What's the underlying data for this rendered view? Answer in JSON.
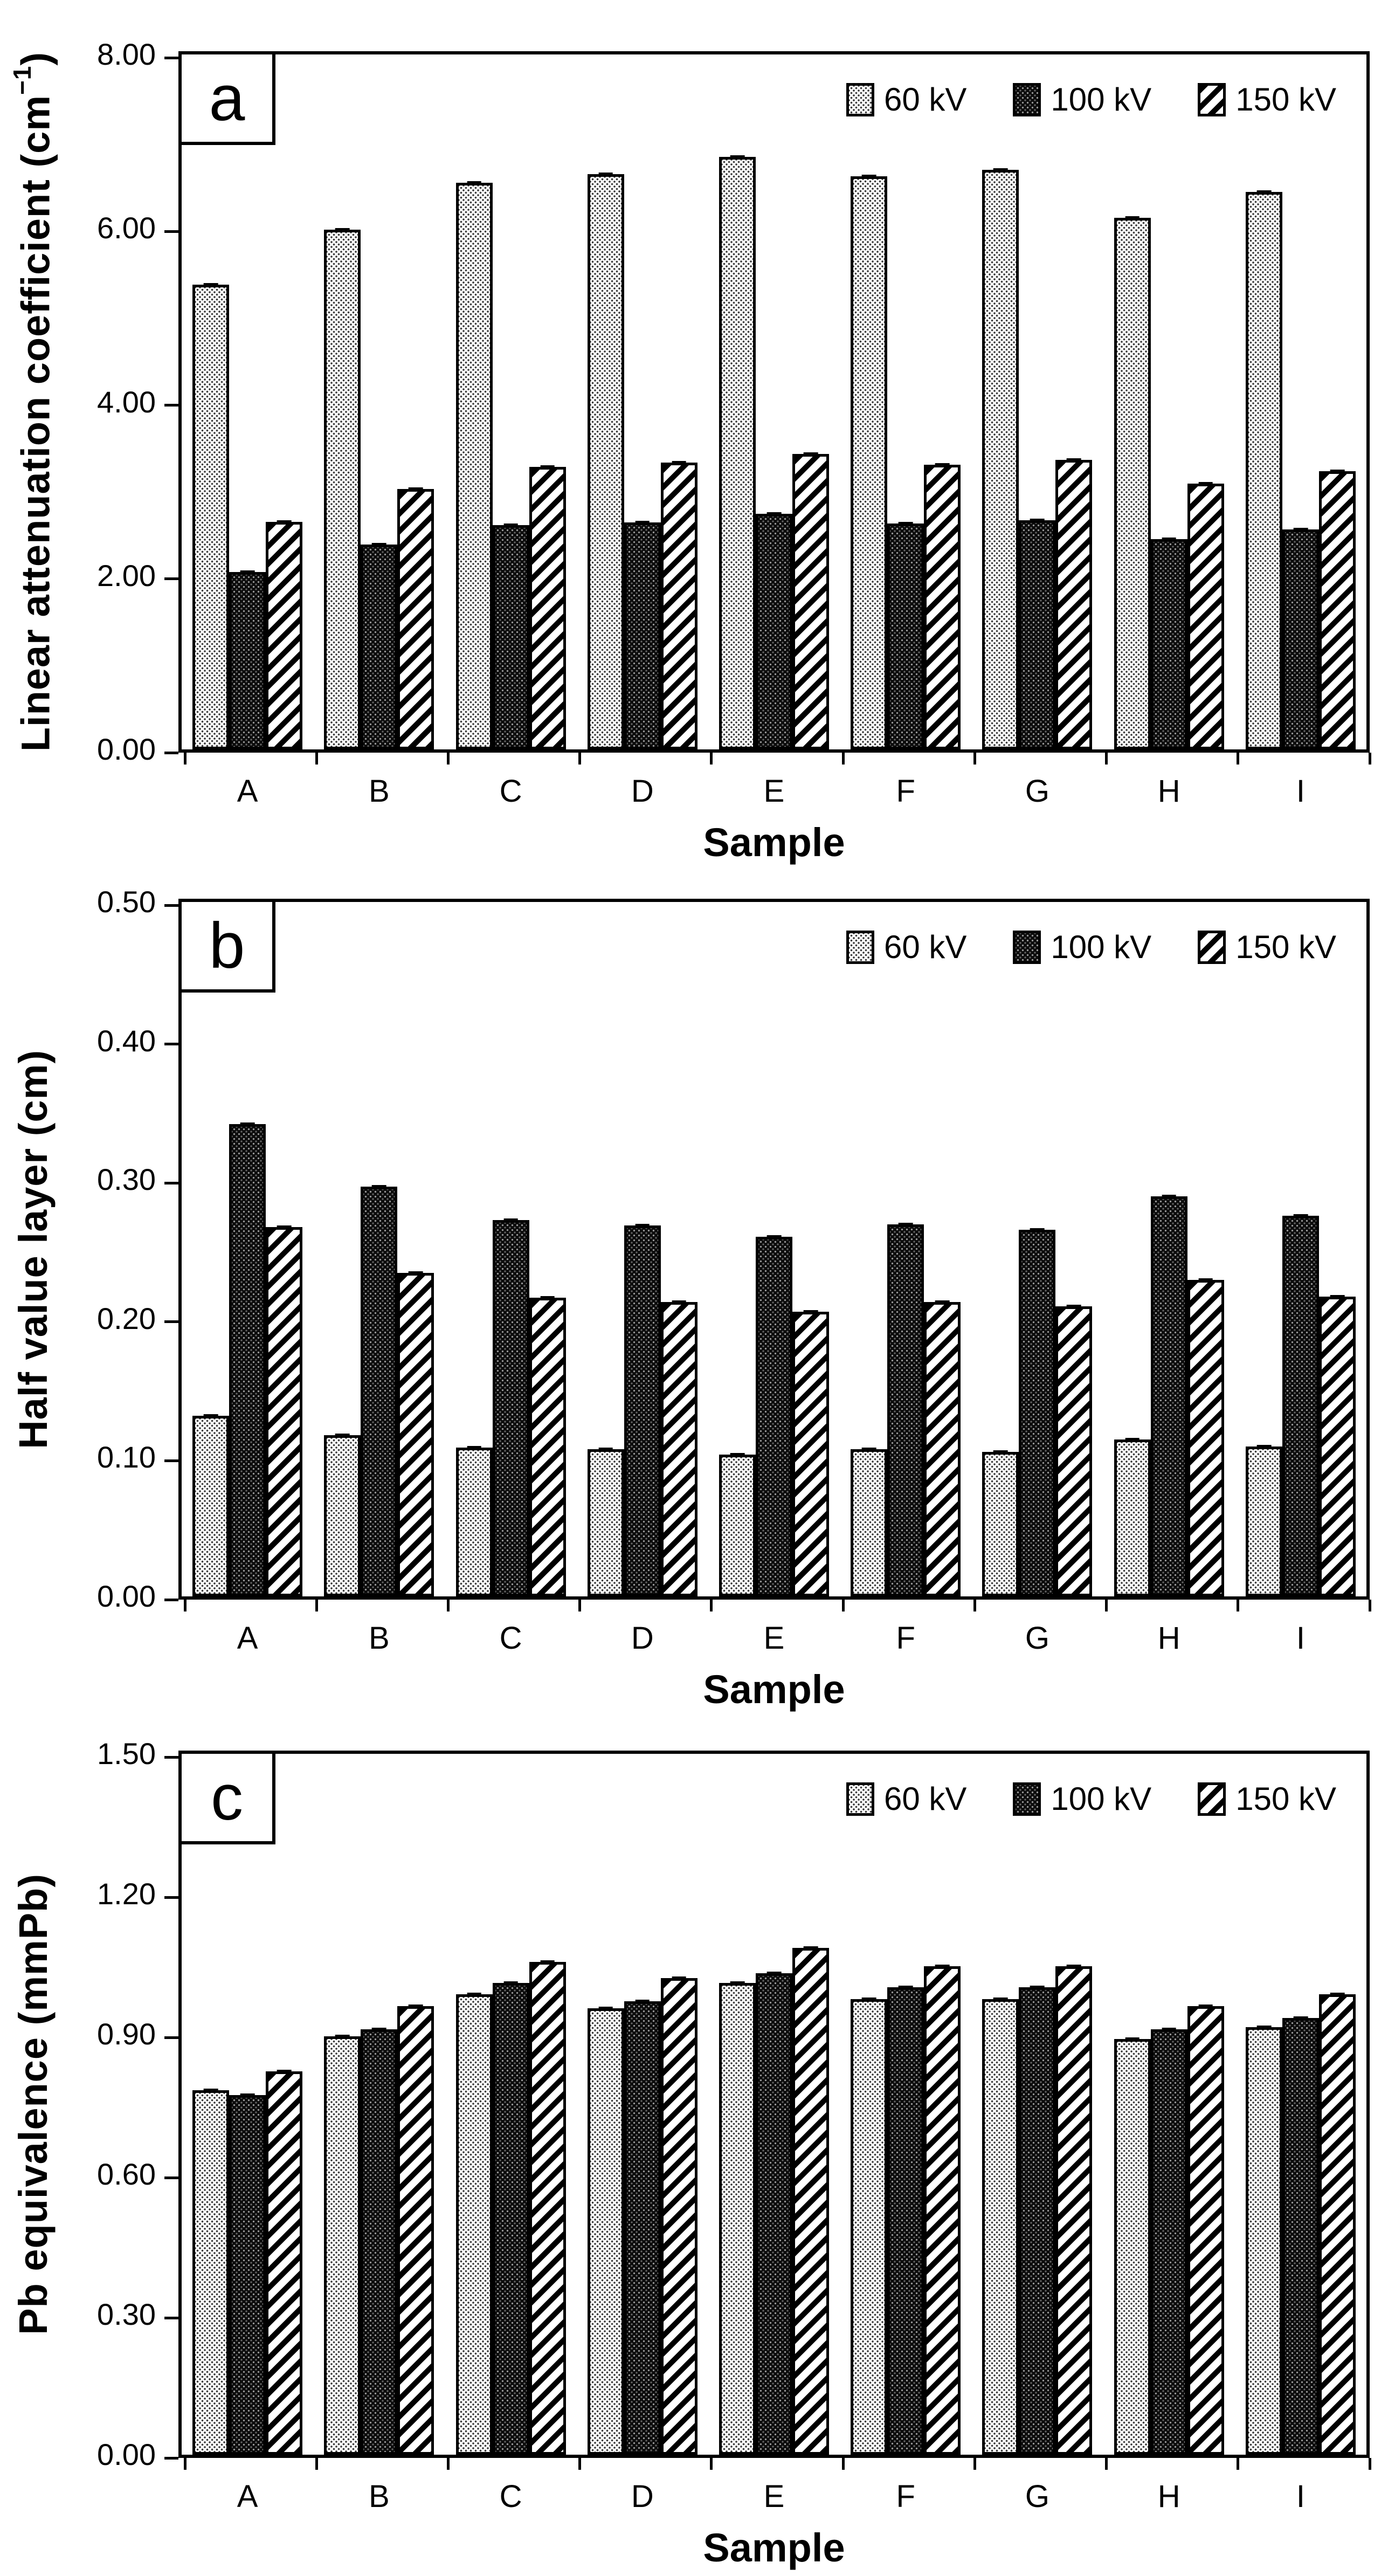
{
  "figure": {
    "background": "#ffffff",
    "ink_color": "#000000",
    "legend_labels": [
      "60 kV",
      "100 kV",
      "150 kV"
    ],
    "series_patterns": [
      "light-dot-grid",
      "dark-dot-grid",
      "diagonal-hatch"
    ]
  },
  "chart_data": [
    {
      "type": "bar",
      "panel_label": "a",
      "title": "",
      "ylabel": "Linear attenuation coefficient (cm⁻¹)",
      "xlabel": "Sample",
      "categories": [
        "A",
        "B",
        "C",
        "D",
        "E",
        "F",
        "G",
        "H",
        "I"
      ],
      "series": [
        {
          "name": "60 kV",
          "pattern": "light-dot-grid",
          "values": [
            5.35,
            5.98,
            6.52,
            6.62,
            6.82,
            6.6,
            6.67,
            6.12,
            6.42
          ]
        },
        {
          "name": "100 kV",
          "pattern": "dark-dot-grid",
          "values": [
            2.04,
            2.36,
            2.58,
            2.61,
            2.71,
            2.6,
            2.64,
            2.42,
            2.53
          ]
        },
        {
          "name": "150 kV",
          "pattern": "diagonal-hatch",
          "values": [
            2.62,
            3.0,
            3.25,
            3.3,
            3.4,
            3.28,
            3.33,
            3.06,
            3.2
          ]
        }
      ],
      "error_bar": 0.03,
      "ylim": [
        0,
        8
      ],
      "yticks": [
        {
          "value": 0,
          "label": "0.00"
        },
        {
          "value": 2,
          "label": "2.00"
        },
        {
          "value": 4,
          "label": "4.00"
        },
        {
          "value": 6,
          "label": "6.00"
        },
        {
          "value": 8,
          "label": "8.00"
        }
      ],
      "legend_position": "top-right",
      "grid": false
    },
    {
      "type": "bar",
      "panel_label": "b",
      "title": "",
      "ylabel": "Half value layer (cm)",
      "xlabel": "Sample",
      "categories": [
        "A",
        "B",
        "C",
        "D",
        "E",
        "F",
        "G",
        "H",
        "I"
      ],
      "series": [
        {
          "name": "60 kV",
          "pattern": "light-dot-grid",
          "values": [
            0.13,
            0.116,
            0.107,
            0.106,
            0.102,
            0.106,
            0.104,
            0.113,
            0.108
          ]
        },
        {
          "name": "100 kV",
          "pattern": "dark-dot-grid",
          "values": [
            0.34,
            0.295,
            0.271,
            0.267,
            0.259,
            0.268,
            0.264,
            0.288,
            0.274
          ]
        },
        {
          "name": "150 kV",
          "pattern": "diagonal-hatch",
          "values": [
            0.266,
            0.233,
            0.215,
            0.212,
            0.205,
            0.212,
            0.209,
            0.228,
            0.216
          ]
        }
      ],
      "error_bar": 0.0015,
      "ylim": [
        0,
        0.5
      ],
      "yticks": [
        {
          "value": 0.0,
          "label": "0.00"
        },
        {
          "value": 0.1,
          "label": "0.10"
        },
        {
          "value": 0.2,
          "label": "0.20"
        },
        {
          "value": 0.3,
          "label": "0.30"
        },
        {
          "value": 0.4,
          "label": "0.40"
        },
        {
          "value": 0.5,
          "label": "0.50"
        }
      ],
      "legend_position": "top-right",
      "grid": false
    },
    {
      "type": "bar",
      "panel_label": "c",
      "title": "",
      "ylabel": "Pb equivalence (mmPb)",
      "xlabel": "Sample",
      "categories": [
        "A",
        "B",
        "C",
        "D",
        "E",
        "F",
        "G",
        "H",
        "I"
      ],
      "series": [
        {
          "name": "60 kV",
          "pattern": "light-dot-grid",
          "values": [
            0.78,
            0.895,
            0.985,
            0.955,
            1.01,
            0.975,
            0.975,
            0.89,
            0.915
          ]
        },
        {
          "name": "100 kV",
          "pattern": "dark-dot-grid",
          "values": [
            0.77,
            0.91,
            1.01,
            0.97,
            1.03,
            1.0,
            1.0,
            0.91,
            0.935
          ]
        },
        {
          "name": "150 kV",
          "pattern": "diagonal-hatch",
          "values": [
            0.82,
            0.96,
            1.055,
            1.02,
            1.085,
            1.045,
            1.045,
            0.96,
            0.985
          ]
        }
      ],
      "error_bar": 0.006,
      "ylim": [
        0,
        1.5
      ],
      "yticks": [
        {
          "value": 0.0,
          "label": "0.00"
        },
        {
          "value": 0.3,
          "label": "0.30"
        },
        {
          "value": 0.6,
          "label": "0.60"
        },
        {
          "value": 0.9,
          "label": "0.90"
        },
        {
          "value": 1.2,
          "label": "1.20"
        },
        {
          "value": 1.5,
          "label": "1.50"
        }
      ],
      "legend_position": "top-right",
      "grid": false
    }
  ]
}
